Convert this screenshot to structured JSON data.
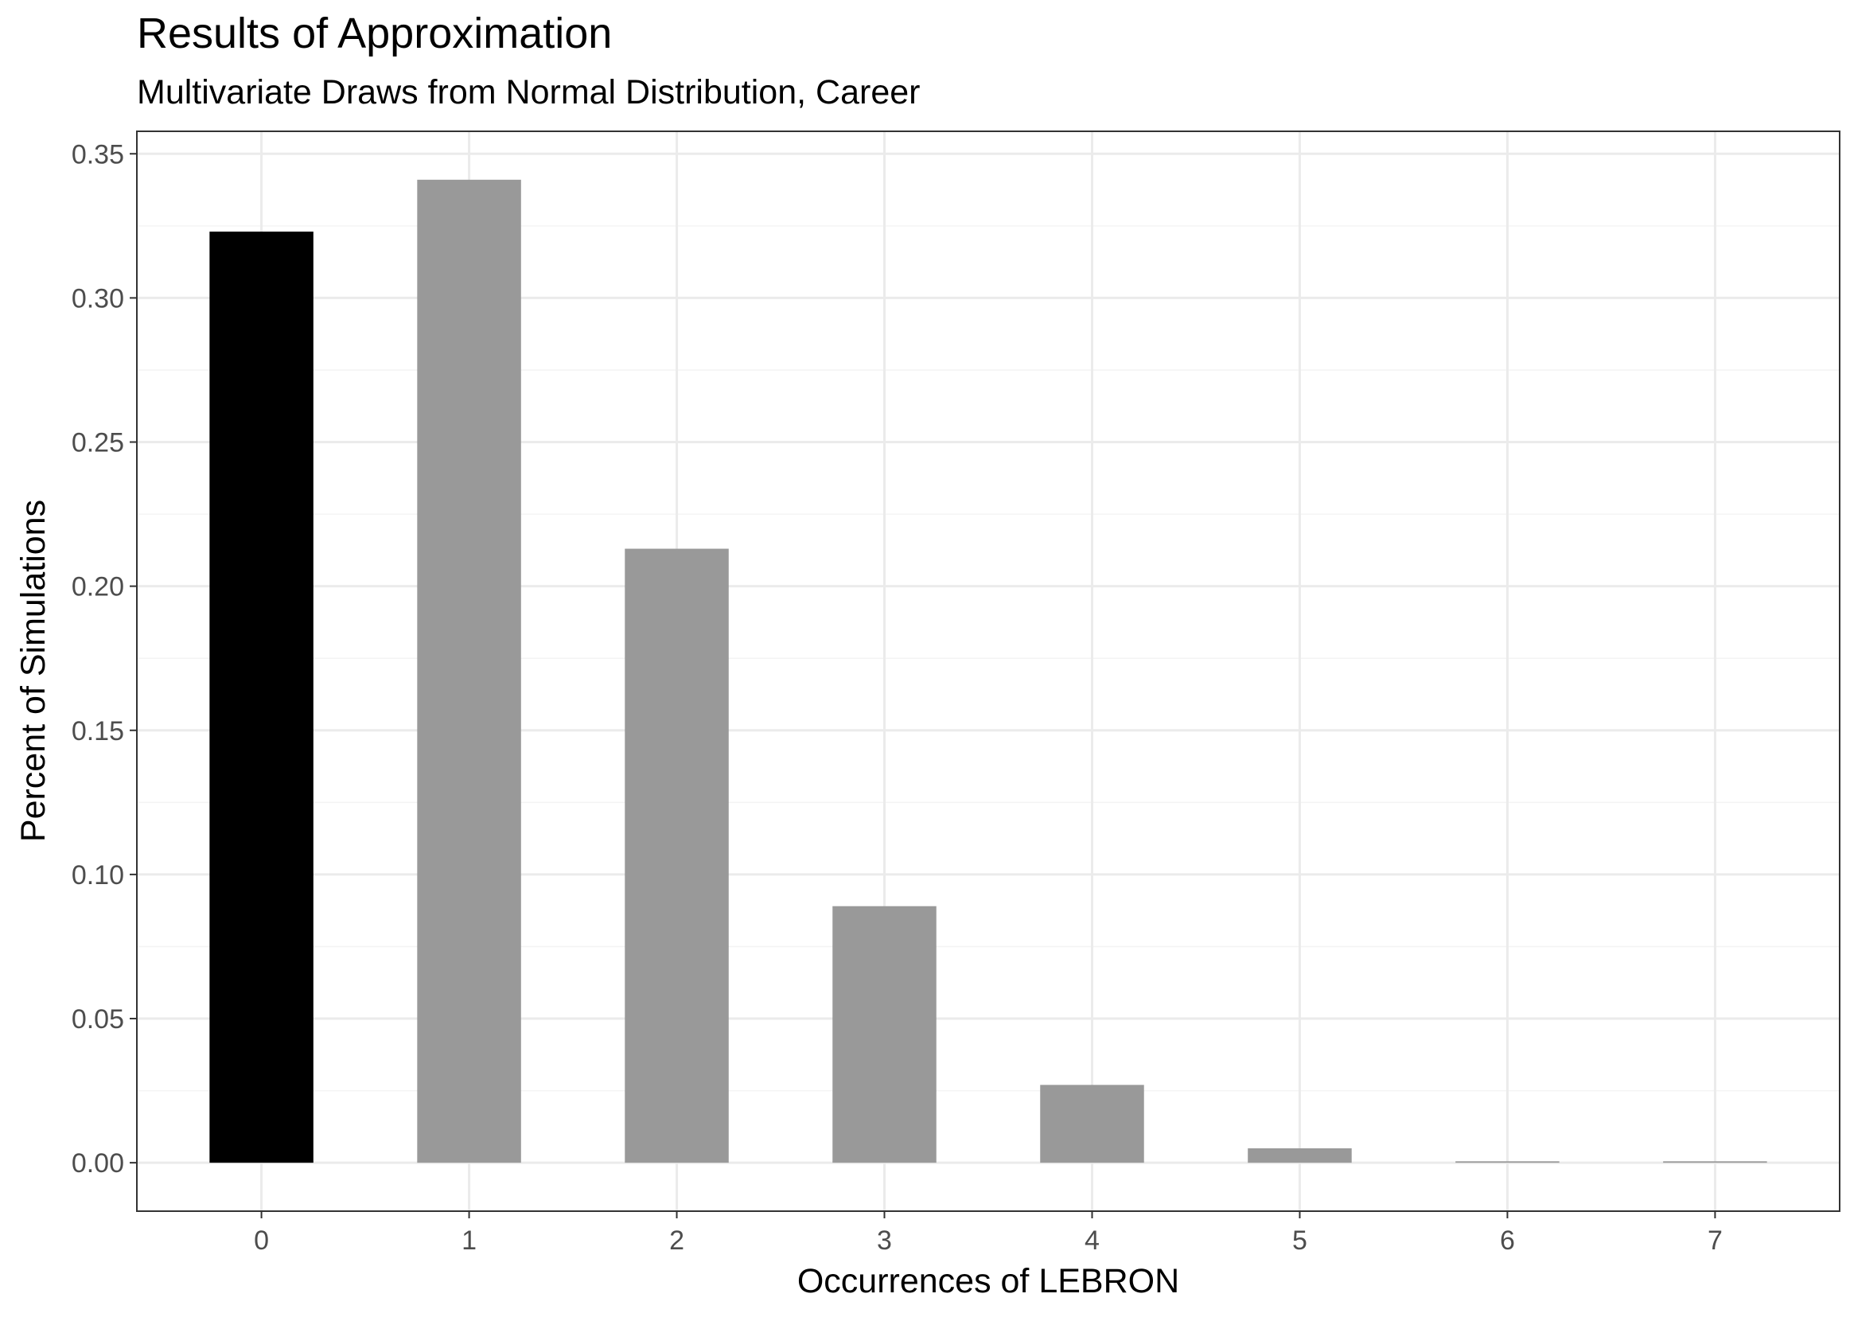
{
  "chart_data": {
    "type": "bar",
    "title": "Results of Approximation",
    "subtitle": "Multivariate Draws from Normal Distribution, Career",
    "xlabel": "Occurrences of LEBRON",
    "ylabel": "Percent of Simulations",
    "categories": [
      "0",
      "1",
      "2",
      "3",
      "4",
      "5",
      "6",
      "7"
    ],
    "values": [
      0.323,
      0.341,
      0.213,
      0.089,
      0.027,
      0.005,
      0.0005,
      0.0005
    ],
    "highlight_index": 0,
    "ylim": [
      -0.0168,
      0.3578
    ],
    "yticks": [
      0.0,
      0.05,
      0.1,
      0.15,
      0.2,
      0.25,
      0.3,
      0.35
    ],
    "ytick_labels": [
      "0.00",
      "0.05",
      "0.10",
      "0.15",
      "0.20",
      "0.25",
      "0.30",
      "0.35"
    ],
    "grid": true,
    "legend": "none",
    "colors": {
      "highlight_bar": "#000000",
      "bar": "#999999",
      "grid_major": "#ebebeb",
      "grid_minor": "#f4f4f4",
      "panel_border": "#333333",
      "tick": "#333333"
    }
  }
}
